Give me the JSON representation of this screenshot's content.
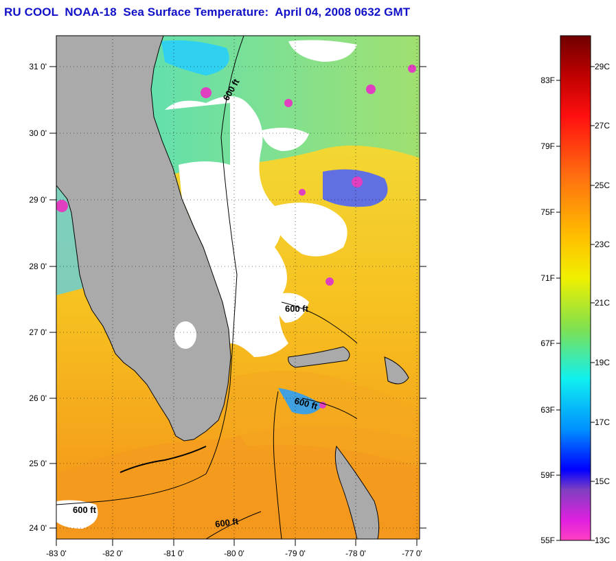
{
  "title": "RU COOL  NOAA-18  Sea Surface Temperature:  April 04, 2008 0632 GMT",
  "map": {
    "lat_ticks": [
      "31 0'",
      "30 0'",
      "29 0'",
      "28 0'",
      "27 0'",
      "26 0'",
      "25 0'",
      "24 0'"
    ],
    "lon_ticks": [
      "-83 0'",
      "-82 0'",
      "-81 0'",
      "-80 0'",
      "-79 0'",
      "-78 0'",
      "-77 0'"
    ],
    "contour_labels": [
      "600 ft",
      "600 ft",
      "600 ft",
      "600 ft",
      "600 ft"
    ]
  },
  "colorbar": {
    "fahrenheit": [
      "83F",
      "79F",
      "75F",
      "71F",
      "67F",
      "63F",
      "59F",
      "55F"
    ],
    "celsius": [
      "29C",
      "27C",
      "25C",
      "23C",
      "21C",
      "19C",
      "17C",
      "15C",
      "13C"
    ]
  },
  "colors": {
    "land": "#aaaaaa",
    "cloud": "#ffffff",
    "title": "#1010c8"
  }
}
